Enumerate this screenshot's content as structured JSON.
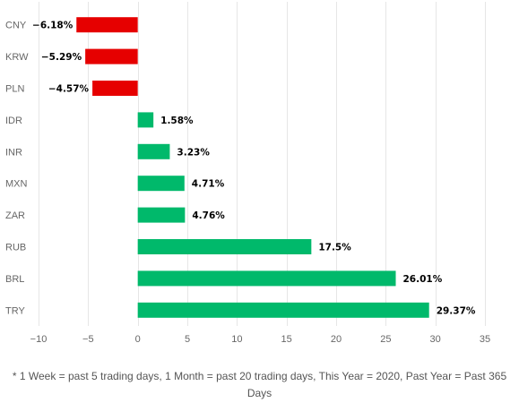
{
  "chart_data": {
    "type": "bar",
    "orientation": "horizontal",
    "categories": [
      "CNY",
      "KRW",
      "PLN",
      "IDR",
      "INR",
      "MXN",
      "ZAR",
      "RUB",
      "BRL",
      "TRY"
    ],
    "values": [
      -6.18,
      -5.29,
      -4.57,
      1.58,
      3.23,
      4.71,
      4.76,
      17.5,
      26.01,
      29.37
    ],
    "data_labels": [
      "−6.18%",
      "−5.29%",
      "−4.57%",
      "1.58%",
      "3.23%",
      "4.71%",
      "4.76%",
      "17.5%",
      "26.01%",
      "29.37%"
    ],
    "x_ticks": [
      -10,
      -5,
      0,
      5,
      10,
      15,
      20,
      25,
      30,
      35
    ],
    "x_tick_labels": [
      "−10",
      "−5",
      "0",
      "5",
      "10",
      "15",
      "20",
      "25",
      "30",
      "35"
    ],
    "xlim": [
      -10,
      35
    ],
    "grid": "vertical",
    "legend": "none",
    "title": "",
    "xlabel": "",
    "ylabel": "",
    "colors": {
      "positive": "#00b96b",
      "negative": "#e60000",
      "grid": "#e6e6e6",
      "axis_text": "#666666",
      "label_text": "#000000"
    }
  },
  "footnote": "* 1 Week = past 5 trading days, 1 Month = past 20 trading days, This Year = 2020, Past Year = Past 365 Days"
}
